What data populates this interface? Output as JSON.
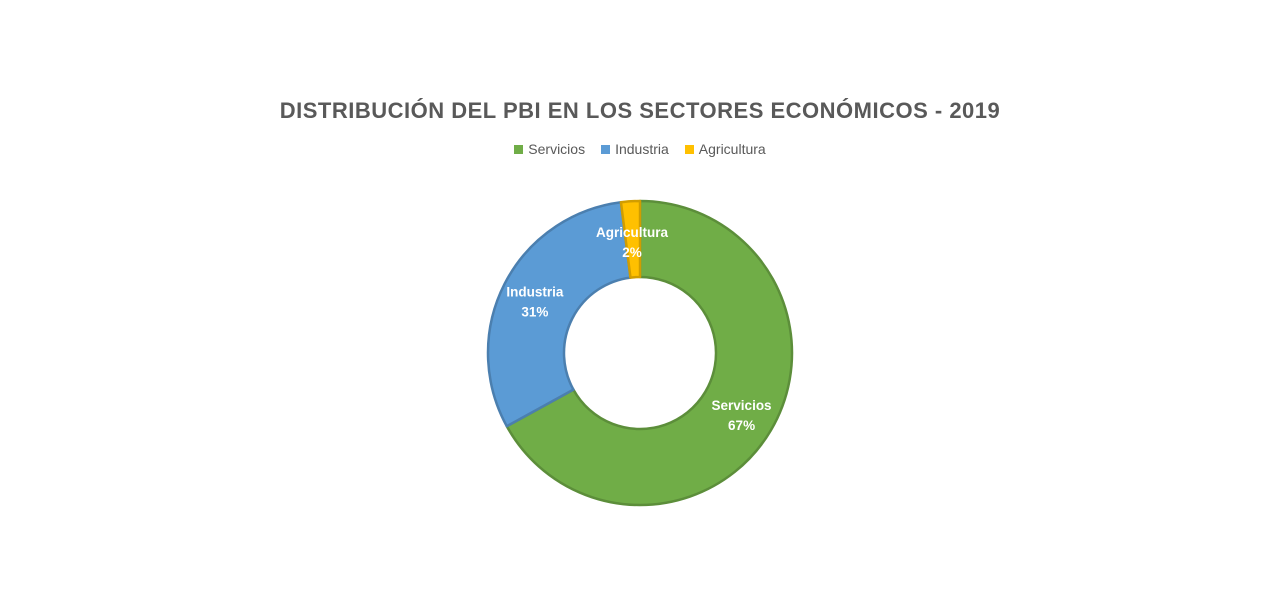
{
  "chart_data": {
    "type": "pie",
    "variant": "donut",
    "title": "DISTRIBUCIÓN DEL PBI EN LOS SECTORES ECONÓMICOS - 2019",
    "legend_position": "top",
    "categories": [
      "Servicios",
      "Industria",
      "Agricultura"
    ],
    "values": [
      67,
      31,
      2
    ],
    "data_labels": [
      "67%",
      "31%",
      "2%"
    ],
    "colors": [
      "#70AD47",
      "#5B9BD5",
      "#FFC000"
    ]
  }
}
